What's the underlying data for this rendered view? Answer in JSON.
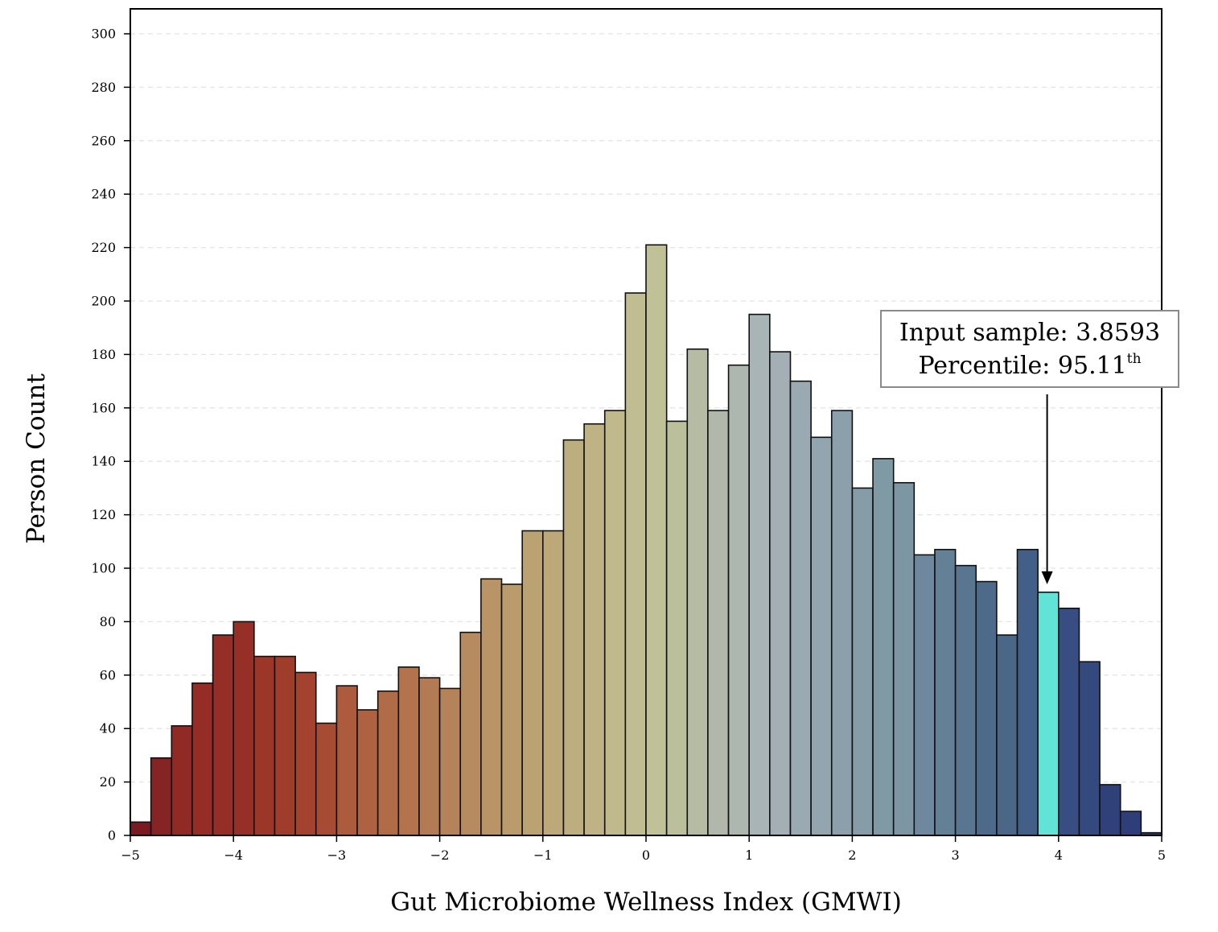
{
  "chart_data": {
    "type": "bar",
    "xlabel": "Gut Microbiome Wellness Index (GMWI)",
    "ylabel": "Person Count",
    "xlim": [
      -5,
      5
    ],
    "ylim": [
      0,
      310
    ],
    "xticks": [
      -5,
      -4,
      -3,
      -2,
      -1,
      0,
      1,
      2,
      3,
      4,
      5
    ],
    "xtick_labels": [
      "−5",
      "−4",
      "−3",
      "−2",
      "−1",
      "0",
      "1",
      "2",
      "3",
      "4",
      "5"
    ],
    "yticks": [
      0,
      20,
      40,
      60,
      80,
      100,
      120,
      140,
      160,
      180,
      200,
      220,
      240,
      260,
      280,
      300
    ],
    "grid": "horizontal dashed",
    "bin_edges_start": -5,
    "bin_width": 0.2,
    "values": [
      5,
      29,
      41,
      57,
      75,
      80,
      67,
      67,
      61,
      42,
      56,
      47,
      54,
      63,
      59,
      55,
      76,
      96,
      94,
      114,
      114,
      148,
      154,
      159,
      203,
      221,
      155,
      182,
      159,
      176,
      195,
      181,
      170,
      149,
      159,
      130,
      141,
      132,
      105,
      107,
      101,
      95,
      75,
      107,
      91,
      85,
      65,
      19,
      9,
      1
    ],
    "colors": [
      "#7a1a22",
      "#862325",
      "#8f2a25",
      "#942d25",
      "#952e26",
      "#963026",
      "#9b3628",
      "#9f3d2c",
      "#a3432f",
      "#a84b34",
      "#ad5b3d",
      "#ae6242",
      "#b06b47",
      "#b2734d",
      "#b37b53",
      "#b58359",
      "#b68b5f",
      "#b89466",
      "#b99b6c",
      "#bba272",
      "#bca878",
      "#bdae7f",
      "#bfb385",
      "#bfb98b",
      "#bfbd91",
      "#c0c197",
      "#bbbf9c",
      "#b6bba3",
      "#b1b8ab",
      "#adb7b0",
      "#a8b4b5",
      "#a3afb5",
      "#9aa9b2",
      "#93a5af",
      "#8ca0ab",
      "#869ca7",
      "#7f9aa5",
      "#7c96a3",
      "#6e889e",
      "#638097",
      "#587690",
      "#4e6a8b",
      "#4b6788",
      "#415f87",
      "#62e3d7",
      "#384e82",
      "#344a7f",
      "#30417a",
      "#2e3e78",
      "#2c3b75"
    ],
    "highlight_index": 44,
    "highlight_color": "#62e3d7",
    "annotation": {
      "line1": "Input sample: 3.8593",
      "line2_prefix": "Percentile: 95.11",
      "line2_suffix": "th",
      "target_x": 3.8593
    }
  }
}
